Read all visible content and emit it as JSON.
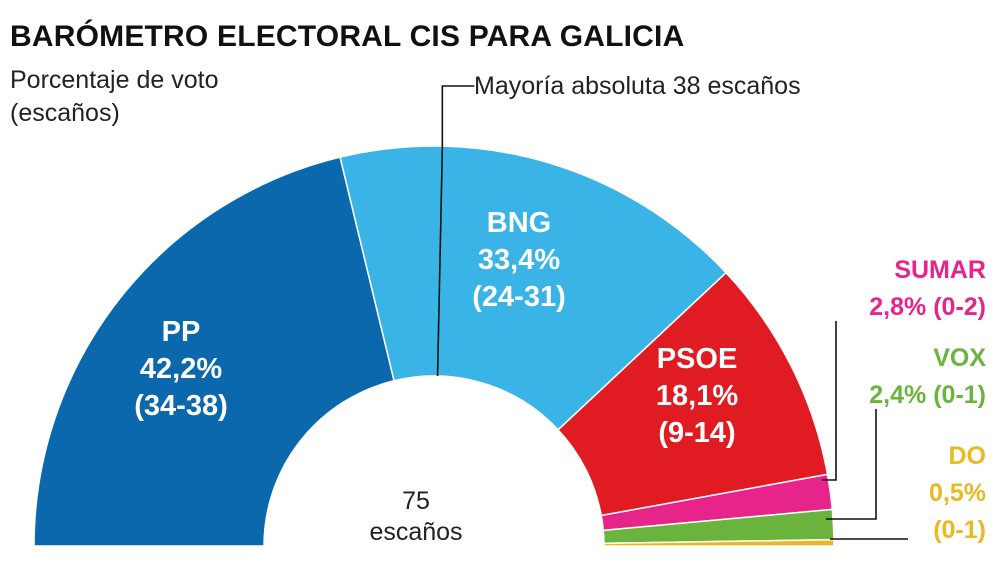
{
  "title": "BARÓMETRO ELECTORAL CIS PARA GALICIA",
  "subtitle_line1": "Porcentaje de voto",
  "subtitle_line2": "(escaños)",
  "majority_label": "Mayoría absoluta 38 escaños",
  "total_line1": "75",
  "total_line2": "escaños",
  "chart_data": {
    "type": "pie",
    "variant": "semicircle-parliament",
    "total_seats": 75,
    "majority_seats": 38,
    "series": [
      {
        "party": "PP",
        "vote_pct": 42.2,
        "vote_text": "42,2%",
        "seats_text": "(34-38)",
        "color": "#0b68ad",
        "seats_min": 34,
        "seats_max": 38
      },
      {
        "party": "BNG",
        "vote_pct": 33.4,
        "vote_text": "33,4%",
        "seats_text": "(24-31)",
        "color": "#3ab3e6",
        "seats_min": 24,
        "seats_max": 31
      },
      {
        "party": "PSOE",
        "vote_pct": 18.1,
        "vote_text": "18,1%",
        "seats_text": "(9-14)",
        "color": "#e11b22",
        "seats_min": 9,
        "seats_max": 14
      },
      {
        "party": "SUMAR",
        "vote_pct": 2.8,
        "vote_text": "2,8% (0-2)",
        "seats_text": "",
        "color": "#e6248a",
        "seats_min": 0,
        "seats_max": 2
      },
      {
        "party": "VOX",
        "vote_pct": 2.4,
        "vote_text": "2,4% (0-1)",
        "seats_text": "",
        "color": "#6ab43e",
        "seats_min": 0,
        "seats_max": 1
      },
      {
        "party": "DO",
        "vote_pct": 0.5,
        "vote_text": "0,5%",
        "seats_text": "(0-1)",
        "color": "#e8b923",
        "seats_min": 0,
        "seats_max": 1
      }
    ]
  }
}
